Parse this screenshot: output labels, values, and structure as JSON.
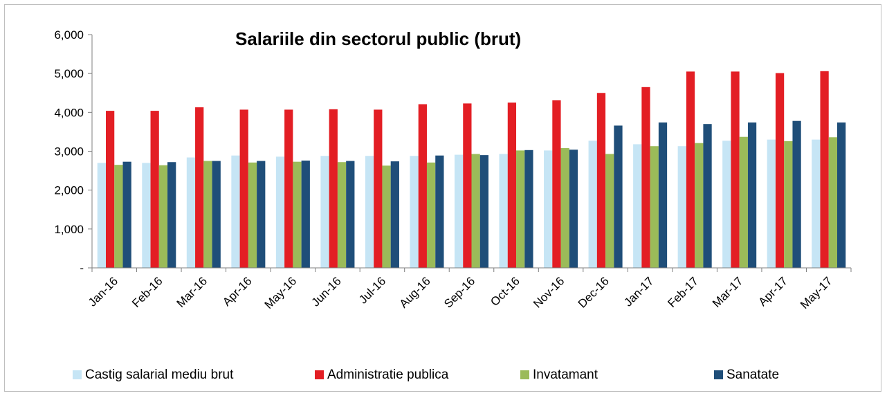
{
  "chart_data": {
    "type": "bar",
    "title": "Salariile din sectorul public (brut)",
    "xlabel": "",
    "ylabel": "",
    "ylim": [
      0,
      6000
    ],
    "ytick_labels": [
      "-",
      "1,000",
      "2,000",
      "3,000",
      "4,000",
      "5,000",
      "6,000"
    ],
    "categories": [
      "Jan-16",
      "Feb-16",
      "Mar-16",
      "Apr-16",
      "May-16",
      "Jun-16",
      "Jul-16",
      "Aug-16",
      "Sep-16",
      "Oct-16",
      "Nov-16",
      "Dec-16",
      "Jan-17",
      "Feb-17",
      "Mar-17",
      "Apr-17",
      "May-17"
    ],
    "series": [
      {
        "name": "Castig salarial mediu brut",
        "color": "#c6e5f5",
        "values": [
          2700,
          2700,
          2840,
          2890,
          2860,
          2880,
          2880,
          2880,
          2910,
          2930,
          3020,
          3270,
          3180,
          3130,
          3270,
          3300,
          3300
        ]
      },
      {
        "name": "Administratie publica",
        "color": "#e31e24",
        "values": [
          4040,
          4040,
          4130,
          4070,
          4070,
          4080,
          4070,
          4210,
          4230,
          4250,
          4310,
          4500,
          4650,
          5050,
          5050,
          5010,
          5060
        ]
      },
      {
        "name": "Invatamant",
        "color": "#9bbb59",
        "values": [
          2650,
          2640,
          2750,
          2710,
          2730,
          2720,
          2630,
          2710,
          2930,
          3020,
          3080,
          2930,
          3130,
          3210,
          3370,
          3260,
          3360
        ]
      },
      {
        "name": "Sanatate",
        "color": "#1f4e79",
        "values": [
          2730,
          2720,
          2750,
          2750,
          2760,
          2750,
          2740,
          2890,
          2900,
          3030,
          3040,
          3660,
          3740,
          3700,
          3740,
          3780,
          3740
        ]
      }
    ],
    "legend_position": "bottom",
    "grid": false
  }
}
